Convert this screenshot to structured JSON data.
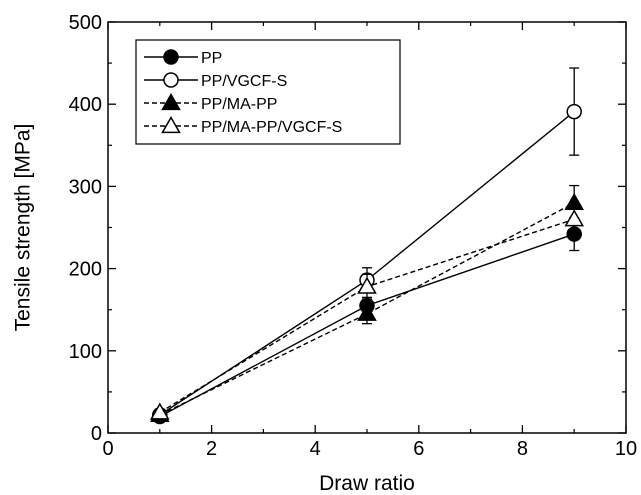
{
  "chart_data": {
    "type": "line",
    "title": "",
    "xlabel": "Draw ratio",
    "ylabel": "Tensile strength [MPa]",
    "xlim": [
      0,
      10
    ],
    "ylim": [
      0,
      500
    ],
    "xticks": [
      0,
      2,
      4,
      6,
      8,
      10
    ],
    "yticks": [
      0,
      100,
      200,
      300,
      400,
      500
    ],
    "grid": false,
    "legend_position": "top-left",
    "x": [
      1,
      5,
      9
    ],
    "series": [
      {
        "name": "PP",
        "values": [
          20,
          155,
          242
        ],
        "err": [
          4,
          10,
          20
        ],
        "marker": "circle-filled",
        "line": "solid"
      },
      {
        "name": "PP/VGCF-S",
        "values": [
          22,
          186,
          391
        ],
        "err": [
          4,
          15,
          53
        ],
        "marker": "circle-open",
        "line": "solid"
      },
      {
        "name": "PP/MA-PP",
        "values": [
          22,
          145,
          280
        ],
        "err": [
          4,
          12,
          21
        ],
        "marker": "triangle-filled",
        "line": "dashed"
      },
      {
        "name": "PP/MA-PP/VGCF-S",
        "values": [
          25,
          178,
          260
        ],
        "err": [
          4,
          15,
          12
        ],
        "marker": "triangle-open",
        "line": "dashed"
      }
    ]
  }
}
